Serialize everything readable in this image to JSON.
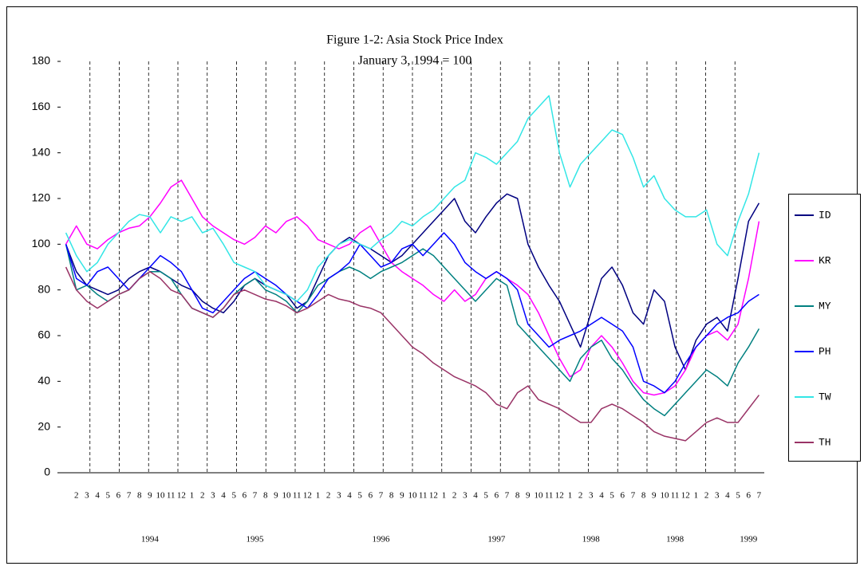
{
  "chart_data": {
    "type": "line",
    "title": "Figure 1-2: Asia Stock Price Index",
    "subtitle": "January 3, 1994 = 100",
    "categories": [
      null,
      "2",
      "3",
      "4",
      "5",
      "6",
      "7",
      "8",
      "9",
      "10",
      "11",
      "12",
      "1",
      "2",
      "3",
      "4",
      "5",
      "6",
      "7",
      "8",
      "9",
      "10",
      "11",
      "12",
      "1",
      "2",
      "3",
      "4",
      "5",
      "6",
      "7",
      "8",
      "9",
      "10",
      "11",
      "12",
      "1",
      "2",
      "3",
      "4",
      "5",
      "6",
      "7",
      "8",
      "9",
      "10",
      "11",
      "12",
      "1",
      "2",
      "3",
      "4",
      "5",
      "6",
      "7",
      "8",
      "9",
      "10",
      "11",
      "12",
      "1",
      "2",
      "3",
      "4",
      "5",
      "6",
      "7"
    ],
    "year_labels": [
      null,
      null,
      null,
      null,
      null,
      null,
      null,
      null,
      "1994",
      null,
      null,
      null,
      null,
      null,
      null,
      null,
      null,
      null,
      "1995",
      null,
      null,
      null,
      null,
      null,
      null,
      null,
      null,
      null,
      null,
      null,
      "1996",
      null,
      null,
      null,
      null,
      null,
      null,
      null,
      null,
      null,
      null,
      "1997",
      null,
      null,
      null,
      null,
      null,
      null,
      null,
      null,
      "1998",
      null,
      null,
      null,
      null,
      null,
      null,
      null,
      "1998",
      null,
      null,
      null,
      null,
      null,
      null,
      "1999",
      null
    ],
    "ylim": [
      0,
      180
    ],
    "yticks": [
      0,
      20,
      40,
      60,
      80,
      100,
      120,
      140,
      160,
      180
    ],
    "legend": "right",
    "series": [
      {
        "name": "ID",
        "color": "#000080",
        "values": [
          100,
          88,
          82,
          80,
          78,
          80,
          85,
          88,
          90,
          88,
          85,
          82,
          80,
          75,
          72,
          70,
          75,
          82,
          85,
          82,
          80,
          78,
          72,
          75,
          85,
          95,
          100,
          103,
          100,
          98,
          95,
          92,
          95,
          100,
          105,
          110,
          115,
          120,
          110,
          105,
          112,
          118,
          122,
          120,
          100,
          90,
          82,
          75,
          65,
          55,
          70,
          85,
          90,
          82,
          70,
          65,
          80,
          75,
          55,
          45,
          58,
          65,
          68,
          62,
          85,
          110,
          118
        ]
      },
      {
        "name": "KR",
        "color": "#ff00ff",
        "values": [
          100,
          108,
          100,
          98,
          102,
          105,
          107,
          108,
          112,
          118,
          125,
          128,
          120,
          112,
          108,
          105,
          102,
          100,
          103,
          108,
          105,
          110,
          112,
          108,
          102,
          100,
          98,
          100,
          105,
          108,
          100,
          92,
          88,
          85,
          82,
          78,
          75,
          80,
          75,
          78,
          85,
          88,
          85,
          82,
          78,
          70,
          60,
          50,
          42,
          45,
          55,
          60,
          55,
          48,
          40,
          35,
          34,
          35,
          38,
          45,
          55,
          60,
          62,
          58,
          65,
          85,
          110
        ]
      },
      {
        "name": "MY",
        "color": "#008080",
        "values": [
          100,
          80,
          82,
          78,
          75,
          78,
          80,
          85,
          88,
          88,
          85,
          78,
          72,
          70,
          68,
          72,
          78,
          82,
          85,
          80,
          78,
          75,
          70,
          75,
          82,
          85,
          88,
          90,
          88,
          85,
          88,
          90,
          92,
          95,
          98,
          95,
          90,
          85,
          80,
          75,
          80,
          85,
          82,
          65,
          60,
          55,
          50,
          45,
          40,
          50,
          55,
          58,
          50,
          45,
          38,
          32,
          28,
          25,
          30,
          35,
          40,
          45,
          42,
          38,
          48,
          55,
          63
        ]
      },
      {
        "name": "PH",
        "color": "#0000ff",
        "values": [
          100,
          85,
          82,
          88,
          90,
          85,
          80,
          85,
          90,
          95,
          92,
          88,
          80,
          72,
          70,
          75,
          80,
          85,
          88,
          85,
          82,
          78,
          75,
          72,
          78,
          85,
          88,
          92,
          100,
          95,
          90,
          92,
          98,
          100,
          95,
          100,
          105,
          100,
          92,
          88,
          85,
          88,
          85,
          80,
          65,
          60,
          55,
          58,
          60,
          62,
          65,
          68,
          65,
          62,
          55,
          40,
          38,
          35,
          40,
          48,
          55,
          60,
          65,
          68,
          70,
          75,
          78
        ]
      },
      {
        "name": "TW",
        "color": "#33e6e6",
        "values": [
          105,
          95,
          88,
          92,
          100,
          105,
          110,
          113,
          112,
          105,
          112,
          110,
          112,
          105,
          107,
          100,
          92,
          90,
          88,
          82,
          80,
          78,
          75,
          80,
          90,
          95,
          100,
          102,
          100,
          98,
          102,
          105,
          110,
          108,
          112,
          115,
          120,
          125,
          128,
          140,
          138,
          135,
          140,
          145,
          155,
          160,
          165,
          140,
          125,
          135,
          140,
          145,
          150,
          148,
          138,
          125,
          130,
          120,
          115,
          112,
          112,
          115,
          100,
          95,
          110,
          122,
          140
        ]
      },
      {
        "name": "TH",
        "color": "#993366",
        "values": [
          90,
          80,
          75,
          72,
          75,
          78,
          80,
          85,
          88,
          85,
          80,
          78,
          72,
          70,
          68,
          72,
          78,
          80,
          78,
          76,
          75,
          73,
          70,
          72,
          75,
          78,
          76,
          75,
          73,
          72,
          70,
          65,
          60,
          55,
          52,
          48,
          45,
          42,
          40,
          38,
          35,
          30,
          28,
          35,
          38,
          32,
          30,
          28,
          25,
          22,
          22,
          28,
          30,
          28,
          25,
          22,
          18,
          16,
          15,
          14,
          18,
          22,
          24,
          22,
          22,
          28,
          34
        ]
      }
    ]
  }
}
